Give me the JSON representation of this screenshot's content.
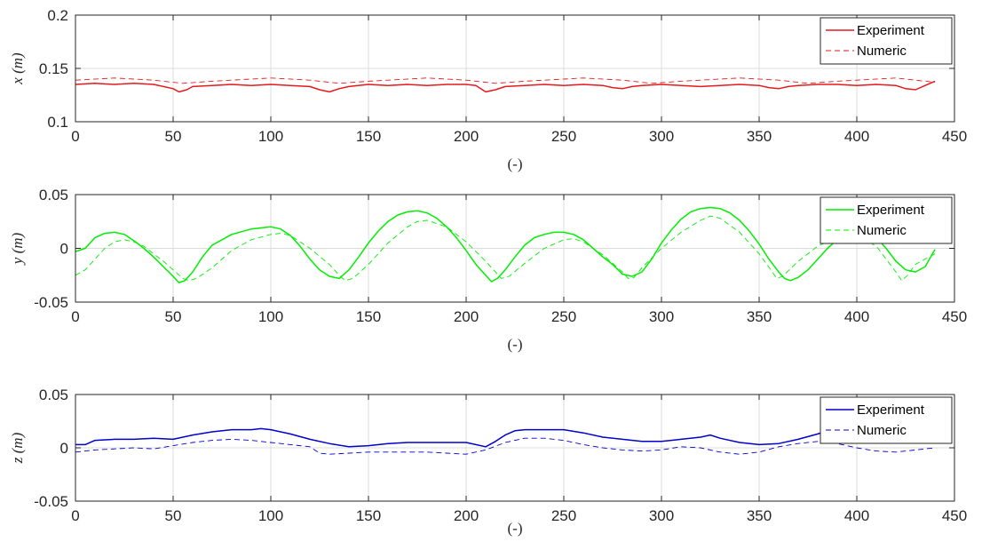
{
  "chart_data": [
    {
      "type": "line",
      "xlabel": "(-)",
      "ylabel": "x (m)",
      "xlim": [
        0,
        450
      ],
      "ylim": [
        0.1,
        0.2
      ],
      "xticks": [
        0,
        50,
        100,
        150,
        200,
        250,
        300,
        350,
        400,
        450
      ],
      "xtick_labels": [
        "0",
        "50",
        "100",
        "150",
        "200",
        "250",
        "300",
        "350",
        "400",
        "450"
      ],
      "yticks": [
        0.1,
        0.15,
        0.2
      ],
      "ytick_labels": [
        "0.1",
        "0.15",
        "0.2"
      ],
      "grid": true,
      "legend_position": "top-right",
      "series": [
        {
          "name": "Experiment",
          "color": "#e41a1c",
          "style": "solid",
          "x": [
            0,
            10,
            20,
            30,
            40,
            45,
            50,
            53,
            57,
            60,
            70,
            80,
            90,
            100,
            110,
            120,
            125,
            130,
            135,
            140,
            150,
            160,
            170,
            180,
            190,
            200,
            205,
            210,
            215,
            220,
            230,
            240,
            250,
            260,
            270,
            275,
            280,
            285,
            290,
            300,
            310,
            320,
            330,
            340,
            350,
            355,
            360,
            365,
            370,
            380,
            390,
            400,
            410,
            420,
            425,
            430,
            435,
            440
          ],
          "y": [
            0.135,
            0.136,
            0.135,
            0.136,
            0.135,
            0.133,
            0.131,
            0.128,
            0.13,
            0.133,
            0.134,
            0.135,
            0.134,
            0.135,
            0.134,
            0.133,
            0.13,
            0.128,
            0.131,
            0.133,
            0.135,
            0.134,
            0.135,
            0.134,
            0.135,
            0.135,
            0.134,
            0.128,
            0.13,
            0.133,
            0.134,
            0.135,
            0.134,
            0.135,
            0.134,
            0.132,
            0.131,
            0.133,
            0.134,
            0.135,
            0.134,
            0.133,
            0.134,
            0.135,
            0.134,
            0.132,
            0.131,
            0.133,
            0.134,
            0.135,
            0.135,
            0.134,
            0.135,
            0.134,
            0.131,
            0.13,
            0.134,
            0.138
          ]
        },
        {
          "name": "Numeric",
          "color": "#e41a1c",
          "style": "dashed",
          "x": [
            0,
            20,
            40,
            55,
            70,
            100,
            120,
            135,
            150,
            180,
            200,
            215,
            230,
            260,
            280,
            295,
            310,
            340,
            360,
            375,
            390,
            420,
            435,
            440
          ],
          "y": [
            0.139,
            0.141,
            0.139,
            0.136,
            0.138,
            0.141,
            0.139,
            0.136,
            0.138,
            0.141,
            0.139,
            0.136,
            0.138,
            0.141,
            0.139,
            0.136,
            0.138,
            0.141,
            0.139,
            0.136,
            0.138,
            0.141,
            0.138,
            0.137
          ]
        }
      ]
    },
    {
      "type": "line",
      "xlabel": "(-)",
      "ylabel": "y (m)",
      "xlim": [
        0,
        450
      ],
      "ylim": [
        -0.05,
        0.05
      ],
      "xticks": [
        0,
        50,
        100,
        150,
        200,
        250,
        300,
        350,
        400,
        450
      ],
      "xtick_labels": [
        "0",
        "50",
        "100",
        "150",
        "200",
        "250",
        "300",
        "350",
        "400",
        "450"
      ],
      "yticks": [
        -0.05,
        0,
        0.05
      ],
      "ytick_labels": [
        "-0.05",
        "0",
        "0.05"
      ],
      "grid": true,
      "legend_position": "top-right",
      "series": [
        {
          "name": "Experiment",
          "color": "#00ee00",
          "style": "solid",
          "x": [
            0,
            5,
            10,
            15,
            20,
            25,
            30,
            35,
            40,
            45,
            50,
            53,
            56,
            60,
            65,
            70,
            80,
            90,
            100,
            105,
            110,
            115,
            120,
            125,
            130,
            135,
            140,
            145,
            150,
            155,
            160,
            165,
            170,
            175,
            180,
            185,
            190,
            195,
            200,
            205,
            210,
            213,
            216,
            220,
            225,
            230,
            235,
            240,
            245,
            250,
            255,
            260,
            265,
            270,
            275,
            280,
            285,
            290,
            295,
            300,
            305,
            310,
            315,
            320,
            325,
            330,
            335,
            340,
            345,
            350,
            355,
            360,
            363,
            366,
            370,
            375,
            380,
            385,
            390,
            395,
            400,
            405,
            410,
            415,
            420,
            425,
            430,
            435,
            440
          ],
          "y": [
            -0.003,
            0.0,
            0.01,
            0.014,
            0.015,
            0.013,
            0.007,
            0.0,
            -0.008,
            -0.017,
            -0.026,
            -0.032,
            -0.03,
            -0.022,
            -0.008,
            0.003,
            0.013,
            0.018,
            0.02,
            0.018,
            0.012,
            0.002,
            -0.01,
            -0.02,
            -0.026,
            -0.028,
            -0.02,
            -0.008,
            0.005,
            0.016,
            0.025,
            0.031,
            0.034,
            0.035,
            0.033,
            0.028,
            0.02,
            0.01,
            -0.002,
            -0.015,
            -0.025,
            -0.031,
            -0.028,
            -0.02,
            -0.008,
            0.003,
            0.01,
            0.013,
            0.015,
            0.015,
            0.013,
            0.008,
            0.0,
            -0.008,
            -0.015,
            -0.024,
            -0.026,
            -0.022,
            -0.01,
            0.005,
            0.017,
            0.027,
            0.034,
            0.037,
            0.038,
            0.037,
            0.033,
            0.026,
            0.016,
            0.004,
            -0.01,
            -0.022,
            -0.028,
            -0.03,
            -0.027,
            -0.02,
            -0.01,
            0.0,
            0.008,
            0.013,
            0.015,
            0.014,
            0.01,
            0.0,
            -0.012,
            -0.02,
            -0.022,
            -0.017,
            -0.001
          ]
        },
        {
          "name": "Numeric",
          "color": "#00ee00",
          "style": "dashed",
          "x": [
            0,
            5,
            10,
            15,
            20,
            25,
            30,
            35,
            40,
            45,
            50,
            55,
            58,
            62,
            70,
            80,
            90,
            100,
            105,
            110,
            120,
            130,
            135,
            138,
            142,
            150,
            160,
            170,
            175,
            180,
            190,
            200,
            210,
            215,
            218,
            222,
            230,
            240,
            250,
            255,
            260,
            270,
            280,
            283,
            286,
            290,
            300,
            310,
            320,
            325,
            330,
            340,
            350,
            356,
            359,
            362,
            370,
            380,
            390,
            400,
            410,
            415,
            420,
            423,
            426,
            430,
            440
          ],
          "y": [
            -0.025,
            -0.02,
            -0.01,
            0.0,
            0.006,
            0.008,
            0.006,
            0.002,
            -0.005,
            -0.012,
            -0.02,
            -0.028,
            -0.03,
            -0.028,
            -0.018,
            -0.002,
            0.008,
            0.013,
            0.014,
            0.012,
            0.0,
            -0.015,
            -0.025,
            -0.03,
            -0.028,
            -0.015,
            0.005,
            0.02,
            0.025,
            0.026,
            0.02,
            0.006,
            -0.012,
            -0.022,
            -0.028,
            -0.026,
            -0.014,
            0.0,
            0.008,
            0.009,
            0.006,
            -0.006,
            -0.022,
            -0.028,
            -0.027,
            -0.018,
            0.0,
            0.015,
            0.026,
            0.03,
            0.028,
            0.015,
            -0.005,
            -0.02,
            -0.028,
            -0.026,
            -0.012,
            0.002,
            0.01,
            0.012,
            0.002,
            -0.01,
            -0.022,
            -0.03,
            -0.025,
            -0.015,
            -0.005
          ]
        }
      ]
    },
    {
      "type": "line",
      "xlabel": "(-)",
      "ylabel": "z (m)",
      "xlim": [
        0,
        450
      ],
      "ylim": [
        -0.05,
        0.05
      ],
      "xticks": [
        0,
        50,
        100,
        150,
        200,
        250,
        300,
        350,
        400,
        450
      ],
      "xtick_labels": [
        "0",
        "50",
        "100",
        "150",
        "200",
        "250",
        "300",
        "350",
        "400",
        "450"
      ],
      "yticks": [
        -0.05,
        0,
        0.05
      ],
      "ytick_labels": [
        "-0.05",
        "0",
        "0.05"
      ],
      "grid": true,
      "legend_position": "top-right",
      "series": [
        {
          "name": "Experiment",
          "color": "#0000cc",
          "style": "solid",
          "x": [
            0,
            5,
            10,
            20,
            30,
            40,
            50,
            60,
            70,
            80,
            90,
            95,
            100,
            110,
            120,
            130,
            140,
            150,
            160,
            170,
            180,
            190,
            200,
            205,
            210,
            215,
            220,
            225,
            230,
            240,
            250,
            260,
            270,
            280,
            290,
            300,
            310,
            320,
            325,
            330,
            340,
            350,
            360,
            370,
            380,
            385,
            390
          ],
          "y": [
            0.003,
            0.003,
            0.007,
            0.008,
            0.008,
            0.009,
            0.008,
            0.012,
            0.015,
            0.017,
            0.017,
            0.018,
            0.017,
            0.013,
            0.008,
            0.004,
            0.001,
            0.002,
            0.004,
            0.005,
            0.005,
            0.005,
            0.005,
            0.003,
            0.001,
            0.006,
            0.012,
            0.016,
            0.017,
            0.017,
            0.017,
            0.014,
            0.01,
            0.008,
            0.006,
            0.006,
            0.008,
            0.01,
            0.012,
            0.009,
            0.005,
            0.003,
            0.004,
            0.008,
            0.013,
            0.016,
            0.018
          ]
        },
        {
          "name": "Numeric",
          "color": "#0000cc",
          "style": "dashed",
          "x": [
            0,
            10,
            20,
            30,
            40,
            50,
            60,
            70,
            80,
            90,
            100,
            110,
            120,
            125,
            130,
            140,
            150,
            160,
            170,
            180,
            190,
            200,
            210,
            220,
            230,
            240,
            250,
            260,
            270,
            280,
            290,
            300,
            310,
            320,
            330,
            340,
            350,
            360,
            370,
            380,
            390,
            400,
            410,
            420,
            430,
            440
          ],
          "y": [
            -0.004,
            -0.002,
            -0.001,
            0.0,
            -0.001,
            0.002,
            0.005,
            0.007,
            0.008,
            0.007,
            0.005,
            0.003,
            0.001,
            -0.005,
            -0.006,
            -0.005,
            -0.004,
            -0.004,
            -0.004,
            -0.004,
            -0.005,
            -0.006,
            -0.002,
            0.005,
            0.009,
            0.009,
            0.007,
            0.003,
            0.0,
            -0.002,
            -0.003,
            -0.002,
            0.001,
            0.0,
            -0.004,
            -0.006,
            -0.004,
            0.001,
            0.004,
            0.006,
            0.004,
            0.0,
            -0.003,
            -0.004,
            -0.002,
            0.0
          ]
        }
      ]
    }
  ]
}
